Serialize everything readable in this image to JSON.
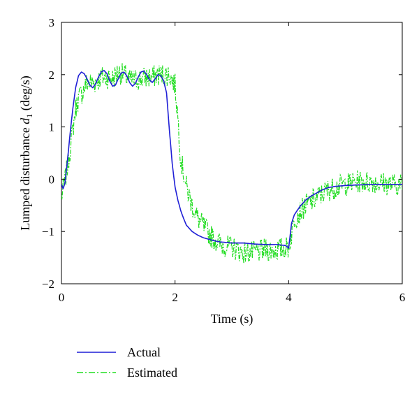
{
  "chart_data": {
    "type": "line",
    "xlabel": "Time (s)",
    "ylabel_main": "Lumped disturbance ",
    "ylabel_var": "d",
    "ylabel_sub": "1",
    "ylabel_unit": " (deg/s)",
    "xlim": [
      0,
      6
    ],
    "ylim": [
      -2,
      3
    ],
    "xticks": [
      0,
      2,
      4,
      6
    ],
    "yticks": [
      -2,
      -1,
      0,
      1,
      2,
      3
    ],
    "grid": false,
    "legend_position": "below the axes, left",
    "series": [
      {
        "name": "Actual",
        "color": "#1f1fd6",
        "style": "solid",
        "x": [
          0,
          0.03,
          0.06,
          0.1,
          0.15,
          0.2,
          0.25,
          0.3,
          0.35,
          0.4,
          0.45,
          0.5,
          0.55,
          0.6,
          0.65,
          0.7,
          0.75,
          0.8,
          0.85,
          0.9,
          0.95,
          1.0,
          1.05,
          1.1,
          1.15,
          1.2,
          1.25,
          1.3,
          1.35,
          1.4,
          1.45,
          1.5,
          1.55,
          1.6,
          1.65,
          1.7,
          1.75,
          1.8,
          1.85,
          1.9,
          1.95,
          2.0,
          2.05,
          2.1,
          2.15,
          2.2,
          2.3,
          2.4,
          2.5,
          2.6,
          2.7,
          2.8,
          2.9,
          3.0,
          3.2,
          3.4,
          3.6,
          3.8,
          3.95,
          4.0,
          4.05,
          4.1,
          4.2,
          4.3,
          4.4,
          4.5,
          4.6,
          4.7,
          4.8,
          5.0,
          5.2,
          5.5,
          5.8,
          6.0
        ],
        "y": [
          -0.1,
          -0.18,
          -0.08,
          0.3,
          0.85,
          1.35,
          1.75,
          1.98,
          2.05,
          2.02,
          1.92,
          1.8,
          1.75,
          1.82,
          1.95,
          2.05,
          2.08,
          2.02,
          1.88,
          1.78,
          1.8,
          1.92,
          2.03,
          2.05,
          1.98,
          1.85,
          1.78,
          1.83,
          1.95,
          2.05,
          2.07,
          2.0,
          1.9,
          1.85,
          1.92,
          2.0,
          1.98,
          1.88,
          1.65,
          0.95,
          0.3,
          -0.15,
          -0.4,
          -0.6,
          -0.75,
          -0.88,
          -1.0,
          -1.07,
          -1.12,
          -1.15,
          -1.18,
          -1.2,
          -1.21,
          -1.22,
          -1.22,
          -1.24,
          -1.25,
          -1.25,
          -1.27,
          -1.32,
          -0.85,
          -0.68,
          -0.52,
          -0.4,
          -0.32,
          -0.26,
          -0.2,
          -0.16,
          -0.14,
          -0.12,
          -0.11,
          -0.1,
          -0.1,
          -0.1
        ]
      },
      {
        "name": "Estimated",
        "color": "#22dd22",
        "style": "dash-dot",
        "noise": 0.22,
        "x": [
          0,
          0.05,
          0.1,
          0.15,
          0.2,
          0.25,
          0.3,
          0.35,
          0.4,
          0.45,
          0.5,
          0.6,
          0.7,
          0.8,
          0.9,
          1.0,
          1.1,
          1.2,
          1.3,
          1.4,
          1.5,
          1.6,
          1.7,
          1.8,
          1.9,
          2.0,
          2.05,
          2.1,
          2.2,
          2.3,
          2.4,
          2.6,
          2.8,
          3.0,
          3.2,
          3.4,
          3.6,
          3.8,
          4.0,
          4.05,
          4.1,
          4.3,
          4.5,
          4.7,
          5.0,
          5.2,
          5.5,
          5.8,
          6.0
        ],
        "y": [
          -0.35,
          -0.1,
          0.2,
          0.55,
          0.95,
          1.35,
          1.55,
          1.62,
          1.75,
          1.85,
          1.85,
          1.85,
          1.95,
          1.95,
          1.92,
          2.05,
          2.0,
          1.9,
          1.9,
          1.92,
          1.95,
          1.95,
          2.0,
          2.0,
          2.0,
          1.8,
          1.2,
          0.4,
          -0.15,
          -0.5,
          -0.75,
          -1.05,
          -1.25,
          -1.3,
          -1.4,
          -1.4,
          -1.35,
          -1.35,
          -1.3,
          -1.05,
          -0.75,
          -0.5,
          -0.35,
          -0.2,
          -0.1,
          -0.05,
          -0.05,
          -0.1,
          -0.1
        ]
      }
    ]
  }
}
